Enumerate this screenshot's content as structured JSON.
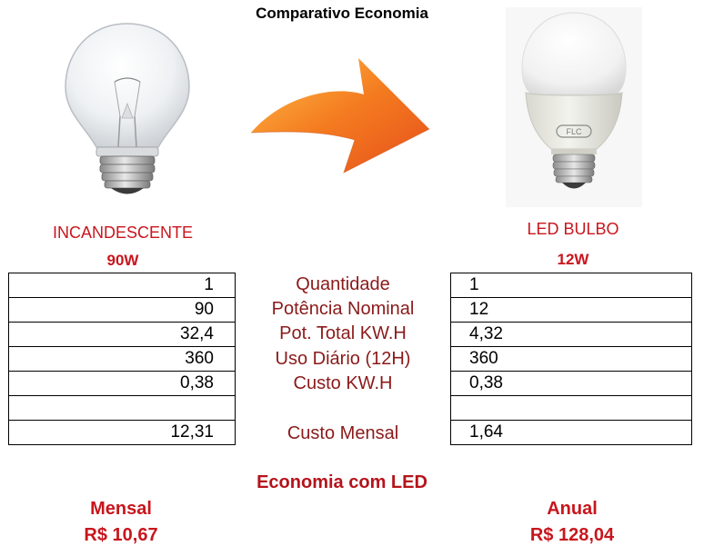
{
  "title": "Comparativo Economia",
  "left_lamp": {
    "name": "INCANDESCENTE",
    "wattage": "90W",
    "values": [
      "1",
      "90",
      "32,4",
      "360",
      "0,38",
      "",
      "12,31"
    ]
  },
  "right_lamp": {
    "name": "LED BULBO",
    "wattage": "12W",
    "brand_mark": "FLC",
    "values": [
      "1",
      "12",
      "4,32",
      "360",
      "0,38",
      "",
      "1,64"
    ]
  },
  "row_labels": [
    "Quantidade",
    "Potência Nominal",
    "Pot. Total KW.H",
    "Uso Diário (12H)",
    "Custo KW.H",
    "",
    "Custo Mensal"
  ],
  "economy": {
    "title": "Economia com LED",
    "monthly_label": "Mensal",
    "monthly_value": "R$ 10,67",
    "annual_label": "Anual",
    "annual_value": "R$ 128,04"
  },
  "colors": {
    "label_red": "#c8161d",
    "row_label_red": "#8b1a1a",
    "arrow_orange": "#ef6a1c"
  }
}
